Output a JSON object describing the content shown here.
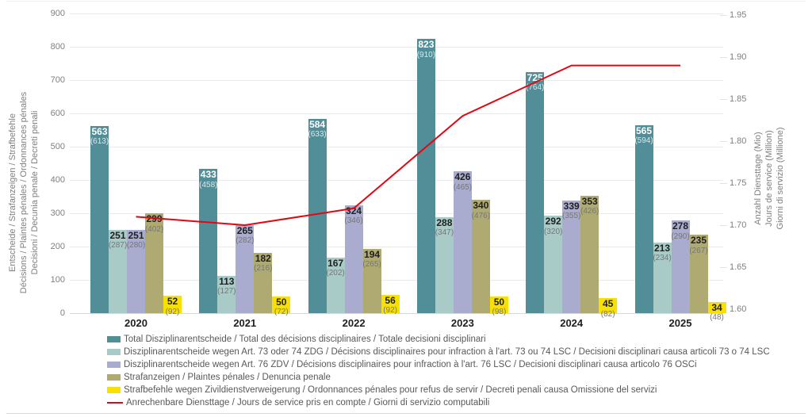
{
  "chart_data": {
    "type": "bar+line",
    "grid": true,
    "legend_position": "bottom",
    "categories": [
      "2020",
      "2021",
      "2022",
      "2023",
      "2024",
      "2025"
    ],
    "series": [
      {
        "key": "total",
        "name": "Total Disziplinarentscheide / Total des décisions disciplinaires / Totale decisioni disciplinari",
        "color": "#528E98",
        "dark": true,
        "values": [
          563,
          433,
          584,
          823,
          725,
          565
        ],
        "paren": [
          613,
          458,
          633,
          910,
          764,
          594
        ]
      },
      {
        "key": "art73-74",
        "name": "Disziplinarentscheide wegen Art. 73 oder 74 ZDG / Décisions disciplinaires pour infraction à l'art. 73 ou 74 LSC / Decisioni disciplinari causa articoli 73 o 74 LSC",
        "color": "#A9CBC8",
        "dark": false,
        "values": [
          251,
          113,
          167,
          288,
          292,
          213
        ],
        "paren": [
          287,
          127,
          202,
          347,
          320,
          234
        ]
      },
      {
        "key": "art76",
        "name": "Disziplinarentscheide wegen Art. 76 ZDV / Décisions disciplinaires pour infraction à l'art. 76 LSC / Decisioni disciplinari causa articolo 76 OSCi",
        "color": "#A9ABCF",
        "dark": false,
        "values": [
          251,
          265,
          324,
          426,
          339,
          278
        ],
        "paren": [
          280,
          282,
          346,
          465,
          355,
          290
        ]
      },
      {
        "key": "strafanzeigen",
        "name": "Strafanzeigen / Plaintes pénales / Denuncia penale",
        "color": "#AFAA72",
        "dark": false,
        "values": [
          299,
          182,
          194,
          340,
          353,
          235
        ],
        "paren": [
          402,
          216,
          265,
          476,
          426,
          267
        ]
      },
      {
        "key": "strafbefehle",
        "name": "Strafbefehle wegen Zivildienstverweigerung / Ordonnances pénales pour refus de servir / Decreti penali causa Omissione del servizi",
        "color": "#F8E100",
        "dark": false,
        "values": [
          52,
          50,
          56,
          50,
          45,
          34
        ],
        "paren": [
          92,
          72,
          92,
          98,
          82,
          48
        ]
      }
    ],
    "line": {
      "key": "diensttage",
      "name": "Anrechenbare Diensttage / Jours de service pris en compte / Giorni di servizio computabili",
      "color": "#E30613",
      "values": [
        1.71,
        1.7,
        1.72,
        1.83,
        1.89,
        1.89
      ]
    },
    "left_axis": {
      "min": 0,
      "max": 900,
      "step": 100,
      "title_lines": [
        "Entscheide / Strafanzeigen / Strafbefehle",
        "Décisions / Plaintes pénales / Ordonnances pénales",
        "Decisioni / Decunia penale / Decreti penali"
      ]
    },
    "right_axis": {
      "min": 1.6,
      "max": 1.95,
      "step": 0.05,
      "title_lines": [
        "Anzahl Diensttage (Mio)",
        "Jours de service (Million)",
        "Giorni di servizio (Millione)"
      ]
    }
  }
}
